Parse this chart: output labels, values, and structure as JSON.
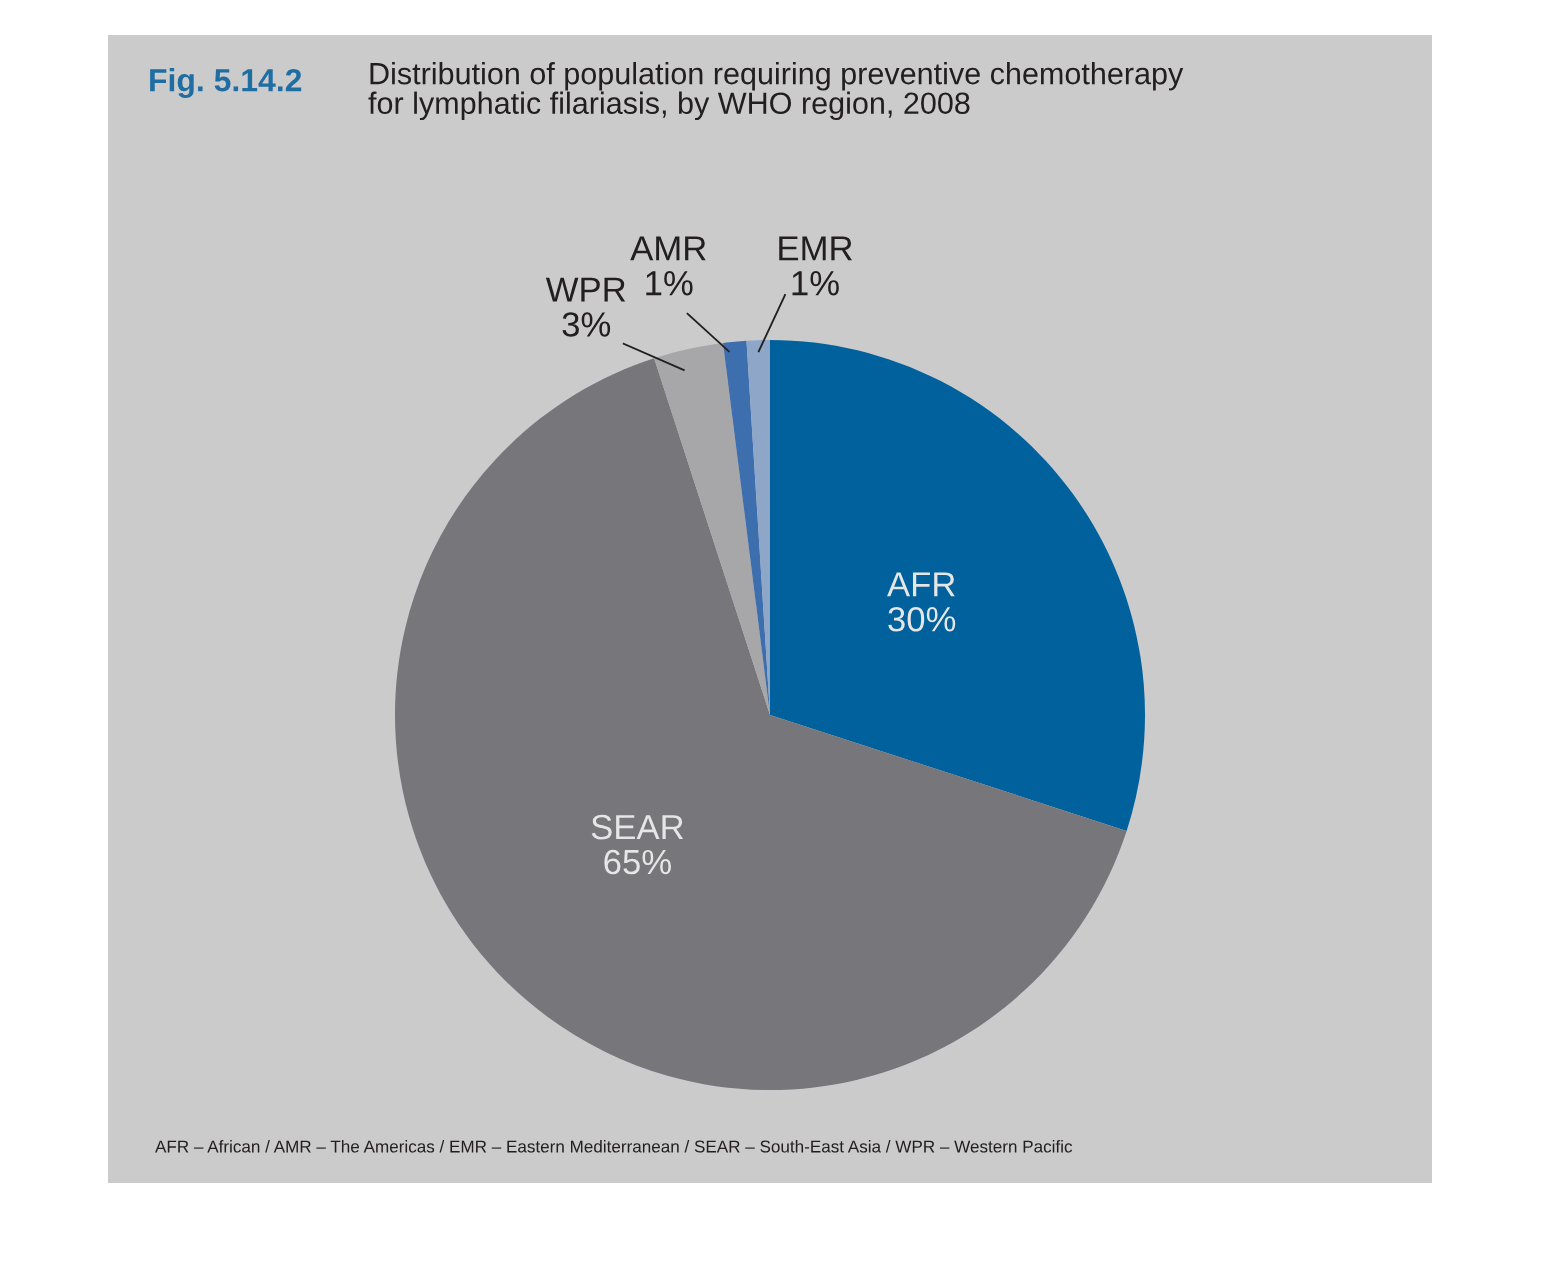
{
  "chart_data": {
    "type": "pie",
    "title": "Distribution of population requiring preventive chemotherapy\nfor lymphatic filariasis, by WHO region, 2008",
    "categories": [
      "AFR",
      "SEAR",
      "WPR",
      "AMR",
      "EMR"
    ],
    "values": [
      30,
      65,
      3,
      1,
      1
    ],
    "colors": [
      "#00619c",
      "#77777b",
      "#a7a7a9",
      "#3d6fae",
      "#8ea6c8"
    ],
    "value_labels": [
      "30%",
      "65%",
      "3%",
      "1%",
      "1%"
    ],
    "legend": false,
    "annotations": [
      "Fig. 5.14.2",
      "AFR – African / AMR – The Americas / EMR – Eastern Mediterranean / SEAR – South-East Asia / WPR – Western Pacific"
    ]
  }
}
